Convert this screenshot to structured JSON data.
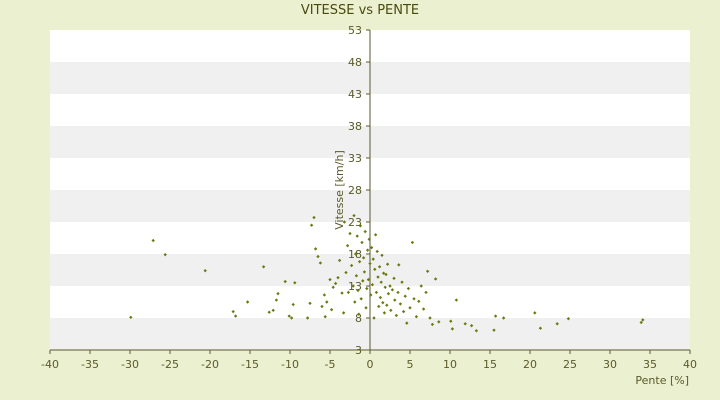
{
  "chart_data": {
    "type": "scatter",
    "title": "VITESSE vs PENTE",
    "xlabel": "Pente [%]",
    "ylabel": "Vitesse [km/h]",
    "xlim": [
      -40,
      40
    ],
    "ylim": [
      3,
      53
    ],
    "xticks": [
      -40,
      -35,
      -30,
      -25,
      -20,
      -15,
      -10,
      -5,
      0,
      5,
      10,
      15,
      20,
      25,
      30,
      35,
      40
    ],
    "yticks": [
      3,
      8,
      13,
      18,
      23,
      28,
      33,
      38,
      43,
      48,
      53
    ],
    "grid": "horizontal bands",
    "legend": "none",
    "colors": {
      "background": "#ebf1d0",
      "plot_band_light": "#ffffff",
      "plot_band_dark": "#f0f0f0",
      "axis": "#5a5a2a",
      "marker": "#6b7a10",
      "text": "#5a5a2a"
    },
    "series": [
      {
        "points": [
          [
            -29.9,
            8.1
          ],
          [
            -27.1,
            20.1
          ],
          [
            -25.6,
            17.9
          ],
          [
            -20.6,
            15.4
          ],
          [
            -17.1,
            9.0
          ],
          [
            -16.8,
            8.3
          ],
          [
            -15.3,
            10.5
          ],
          [
            -13.3,
            16.0
          ],
          [
            -12.6,
            8.9
          ],
          [
            -12.1,
            9.2
          ],
          [
            -11.7,
            10.8
          ],
          [
            -11.5,
            11.8
          ],
          [
            -10.6,
            13.7
          ],
          [
            -10.1,
            8.3
          ],
          [
            -9.8,
            8.0
          ],
          [
            -9.6,
            10.1
          ],
          [
            -9.4,
            13.5
          ],
          [
            -7.8,
            8.0
          ],
          [
            -7.5,
            10.3
          ],
          [
            -7.3,
            22.5
          ],
          [
            -7.0,
            23.7
          ],
          [
            -6.8,
            18.8
          ],
          [
            -6.5,
            17.6
          ],
          [
            -6.2,
            16.6
          ],
          [
            -6.0,
            9.8
          ],
          [
            -5.7,
            11.6
          ],
          [
            -5.6,
            8.2
          ],
          [
            -5.4,
            10.5
          ],
          [
            -5.0,
            14.0
          ],
          [
            -4.8,
            9.3
          ],
          [
            -4.6,
            12.8
          ],
          [
            -4.3,
            13.4
          ],
          [
            -4.0,
            14.3
          ],
          [
            -3.8,
            17.0
          ],
          [
            -3.5,
            11.9
          ],
          [
            -3.3,
            8.8
          ],
          [
            -3.2,
            23.0
          ],
          [
            -3.0,
            15.1
          ],
          [
            -2.8,
            19.3
          ],
          [
            -2.7,
            12.0
          ],
          [
            -2.5,
            21.2
          ],
          [
            -2.3,
            16.2
          ],
          [
            -2.1,
            13.0
          ],
          [
            -2.0,
            24.0
          ],
          [
            -1.9,
            10.5
          ],
          [
            -1.8,
            18.0
          ],
          [
            -1.7,
            14.6
          ],
          [
            -1.6,
            20.8
          ],
          [
            -1.5,
            12.3
          ],
          [
            -1.4,
            8.6
          ],
          [
            -1.3,
            16.8
          ],
          [
            -1.2,
            22.4
          ],
          [
            -1.1,
            11.0
          ],
          [
            -1.0,
            19.8
          ],
          [
            -0.9,
            13.8
          ],
          [
            -0.8,
            17.4
          ],
          [
            -0.7,
            15.2
          ],
          [
            -0.6,
            21.5
          ],
          [
            -0.5,
            9.6
          ],
          [
            -0.4,
            12.6
          ],
          [
            -0.3,
            18.6
          ],
          [
            -0.2,
            14.0
          ],
          [
            -0.1,
            20.3
          ],
          [
            0.0,
            16.5
          ],
          [
            0.1,
            11.6
          ],
          [
            0.2,
            19.0
          ],
          [
            0.3,
            13.2
          ],
          [
            0.4,
            17.2
          ],
          [
            0.5,
            8.0
          ],
          [
            0.6,
            15.6
          ],
          [
            0.7,
            21.0
          ],
          [
            0.8,
            12.0
          ],
          [
            0.9,
            18.4
          ],
          [
            1.0,
            14.4
          ],
          [
            1.1,
            9.8
          ],
          [
            1.2,
            16.0
          ],
          [
            1.3,
            11.2
          ],
          [
            1.4,
            13.6
          ],
          [
            1.5,
            17.8
          ],
          [
            1.6,
            10.4
          ],
          [
            1.7,
            15.0
          ],
          [
            1.8,
            8.8
          ],
          [
            1.9,
            12.8
          ],
          [
            2.0,
            14.8
          ],
          [
            2.1,
            10.0
          ],
          [
            2.2,
            16.4
          ],
          [
            2.3,
            11.8
          ],
          [
            2.5,
            13.0
          ],
          [
            2.6,
            9.2
          ],
          [
            2.8,
            12.4
          ],
          [
            3.0,
            14.2
          ],
          [
            3.1,
            10.8
          ],
          [
            3.3,
            8.4
          ],
          [
            3.5,
            12.0
          ],
          [
            3.6,
            16.3
          ],
          [
            3.8,
            10.2
          ],
          [
            4.0,
            13.6
          ],
          [
            4.2,
            9.0
          ],
          [
            4.4,
            11.4
          ],
          [
            4.6,
            7.2
          ],
          [
            4.8,
            12.6
          ],
          [
            5.0,
            9.6
          ],
          [
            5.3,
            19.8
          ],
          [
            5.5,
            11.0
          ],
          [
            5.8,
            8.2
          ],
          [
            6.1,
            10.6
          ],
          [
            6.4,
            13.0
          ],
          [
            6.7,
            9.4
          ],
          [
            7.0,
            12.0
          ],
          [
            7.2,
            15.3
          ],
          [
            7.5,
            8.0
          ],
          [
            7.8,
            7.0
          ],
          [
            8.2,
            14.1
          ],
          [
            8.6,
            7.4
          ],
          [
            10.1,
            7.5
          ],
          [
            10.3,
            6.3
          ],
          [
            10.8,
            10.8
          ],
          [
            11.9,
            7.1
          ],
          [
            12.7,
            6.8
          ],
          [
            13.3,
            6.0
          ],
          [
            15.5,
            6.1
          ],
          [
            15.7,
            8.3
          ],
          [
            16.7,
            8.0
          ],
          [
            20.6,
            8.8
          ],
          [
            21.3,
            6.4
          ],
          [
            23.4,
            7.1
          ],
          [
            24.8,
            7.9
          ],
          [
            33.9,
            7.3
          ],
          [
            34.1,
            7.7
          ]
        ]
      }
    ]
  }
}
